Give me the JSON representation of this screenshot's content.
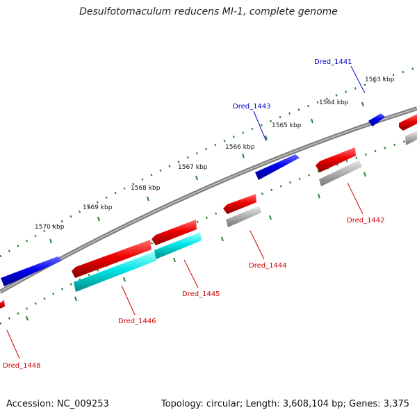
{
  "title": "Desulfotomaculum reducens MI-1, complete genome",
  "footer": {
    "accession": "Accession: NC_009253",
    "topology": "Topology: circular; Length: 3,608,104 bp; Genes: 3,375"
  },
  "colors": {
    "backbone": "#808080",
    "tick": "#2e7d2e",
    "forward_gene": "#0000ee",
    "reverse_gene": "#ee0000",
    "feature_cyan": "#00e5e5",
    "feature_gray": "#b4b4b4",
    "forward_label": "#0000cc",
    "reverse_label": "#cc0000"
  },
  "scale_labels": [
    "1563 kbp",
    "1564 kbp",
    "1565 kbp",
    "1566 kbp",
    "1567 kbp",
    "1568 kbp",
    "1569 kbp",
    "1570 kbp"
  ],
  "gene_labels": [
    {
      "text": "Dred_1441",
      "strand": "forward"
    },
    {
      "text": "Dred_1443",
      "strand": "forward"
    },
    {
      "text": "Dred_1442",
      "strand": "reverse"
    },
    {
      "text": "Dred_1444",
      "strand": "reverse"
    },
    {
      "text": "Dred_1445",
      "strand": "reverse"
    },
    {
      "text": "Dred_1446",
      "strand": "reverse"
    },
    {
      "text": "Dred_1448",
      "strand": "reverse"
    }
  ]
}
